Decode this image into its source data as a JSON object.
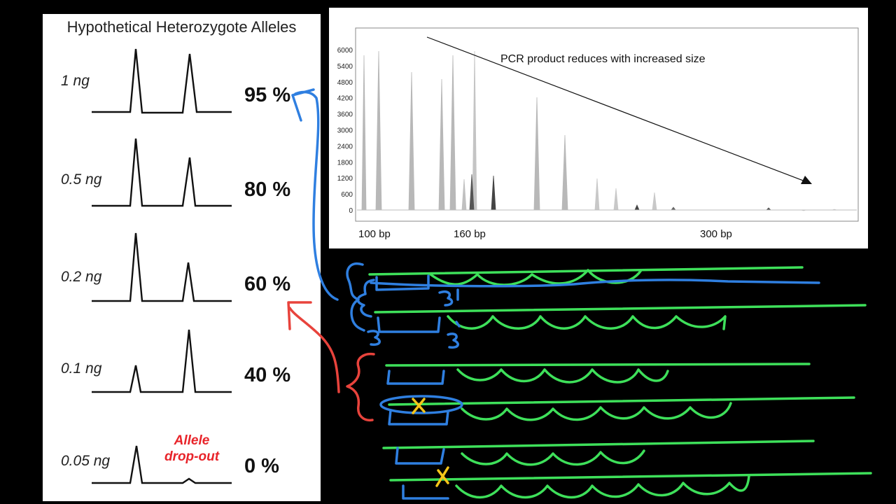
{
  "left_panel": {
    "title": "Hypothetical Heterozygote Alleles",
    "rows": [
      {
        "dose": "1 ng",
        "percent": "95 %"
      },
      {
        "dose": "0.5 ng",
        "percent": "80 %"
      },
      {
        "dose": "0.2 ng",
        "percent": "60 %"
      },
      {
        "dose": "0.1 ng",
        "percent": "40 %"
      },
      {
        "dose": "0.05 ng",
        "percent": "0 %"
      }
    ],
    "dropout_label_line1": "Allele",
    "dropout_label_line2": "drop-out"
  },
  "electropherogram": {
    "y_ticks": [
      "6000",
      "5400",
      "4800",
      "4200",
      "3600",
      "3000",
      "2400",
      "1800",
      "1200",
      "600",
      "0"
    ],
    "bp_labels": [
      "100 bp",
      "160 bp",
      "300 bp"
    ],
    "annotation": "PCR product reduces with increased size"
  },
  "colors": {
    "annotation_red": "#e8242a",
    "pen_green": "#3ee05a",
    "pen_blue": "#2f7fe0",
    "pen_red": "#e8433c",
    "pen_yellow": "#f5c518",
    "peak_gray": "#b8b8b8"
  }
}
